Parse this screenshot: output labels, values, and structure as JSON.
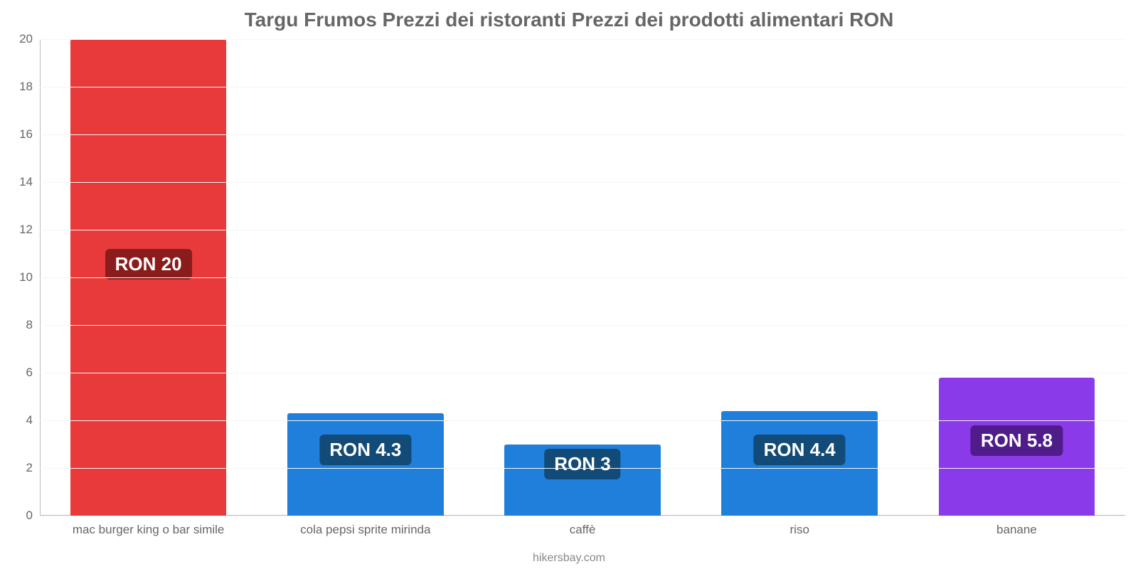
{
  "chart": {
    "type": "bar",
    "title": "Targu Frumos Prezzi dei ristoranti Prezzi dei prodotti alimentari RON",
    "title_fontsize": 28,
    "title_color": "#666666",
    "background_color": "#ffffff",
    "grid_color": "#f5f5f5",
    "axis_color": "#bbbbbb",
    "tick_label_color": "#666666",
    "tick_label_fontsize": 17,
    "value_label_fontsize": 26,
    "ylim": [
      0,
      20
    ],
    "ytick_step": 2,
    "yticks": [
      0,
      2,
      4,
      6,
      8,
      10,
      12,
      14,
      16,
      18,
      20
    ],
    "bar_width": 0.72,
    "categories": [
      "mac burger king o bar simile",
      "cola pepsi sprite mirinda",
      "caffè",
      "riso",
      "banane"
    ],
    "values": [
      20,
      4.3,
      3,
      4.4,
      5.8
    ],
    "value_labels": [
      "RON 20",
      "RON 4.3",
      "RON 3",
      "RON 4.4",
      "RON 5.8"
    ],
    "bar_colors": [
      "#e83a3a",
      "#1f7fdb",
      "#1f7fdb",
      "#1f7fdb",
      "#8a3ae8"
    ],
    "label_bg_colors": [
      "#8a1c1c",
      "#124a78",
      "#124a78",
      "#124a78",
      "#4f1c8a"
    ],
    "label_vpos_pct": [
      44,
      83,
      86,
      83,
      81
    ],
    "footer": "hikersbay.com",
    "footer_color": "#888888"
  }
}
